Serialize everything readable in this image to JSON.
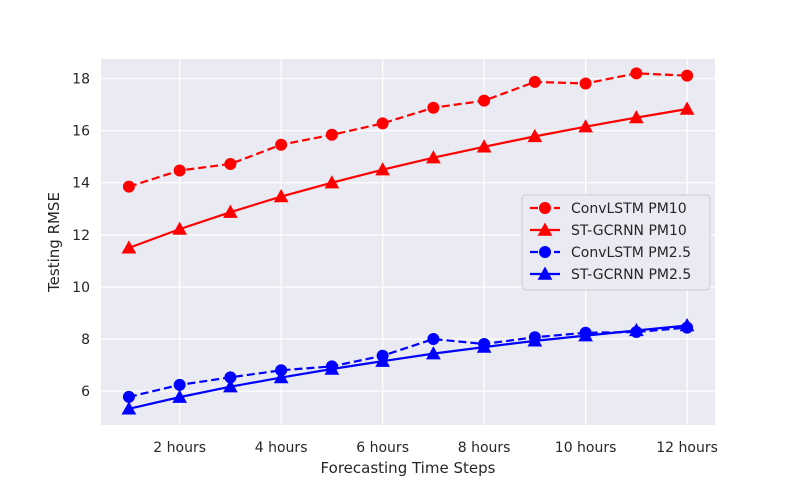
{
  "chart_data": {
    "type": "line",
    "title": "",
    "xlabel": "Forecasting Time Steps",
    "ylabel": "Testing RMSE",
    "x": [
      1,
      2,
      3,
      4,
      5,
      6,
      7,
      8,
      9,
      10,
      11,
      12
    ],
    "xticks": [
      2,
      4,
      6,
      8,
      10,
      12
    ],
    "xtick_labels": [
      "2 hours",
      "4 hours",
      "6 hours",
      "8 hours",
      "10 hours",
      "12 hours"
    ],
    "xlim": [
      0.45,
      12.55
    ],
    "yticks": [
      6,
      8,
      10,
      12,
      14,
      16,
      18
    ],
    "ytick_labels": [
      "6",
      "8",
      "10",
      "12",
      "14",
      "16",
      "18"
    ],
    "ylim": [
      4.7,
      18.75
    ],
    "grid": true,
    "legend_position": "center-right",
    "series": [
      {
        "name": "ConvLSTM PM10",
        "color": "#ff0000",
        "dash": true,
        "marker": "circle",
        "values": [
          13.85,
          14.47,
          14.72,
          15.46,
          15.84,
          16.28,
          16.88,
          17.15,
          17.87,
          17.81,
          18.2,
          18.11
        ]
      },
      {
        "name": "ST-GCRNN PM10",
        "color": "#ff0000",
        "dash": false,
        "marker": "triangle",
        "values": [
          11.5,
          12.22,
          12.87,
          13.47,
          14.0,
          14.5,
          14.96,
          15.38,
          15.78,
          16.15,
          16.5,
          16.83
        ]
      },
      {
        "name": "ConvLSTM PM2.5",
        "color": "#0000ff",
        "dash": true,
        "marker": "circle",
        "values": [
          5.78,
          6.24,
          6.53,
          6.8,
          6.95,
          7.36,
          8.0,
          7.81,
          8.07,
          8.24,
          8.27,
          8.44
        ]
      },
      {
        "name": "ST-GCRNN PM2.5",
        "color": "#0000ff",
        "dash": false,
        "marker": "triangle",
        "values": [
          5.32,
          5.77,
          6.17,
          6.52,
          6.85,
          7.15,
          7.44,
          7.69,
          7.93,
          8.13,
          8.33,
          8.52
        ]
      }
    ]
  }
}
